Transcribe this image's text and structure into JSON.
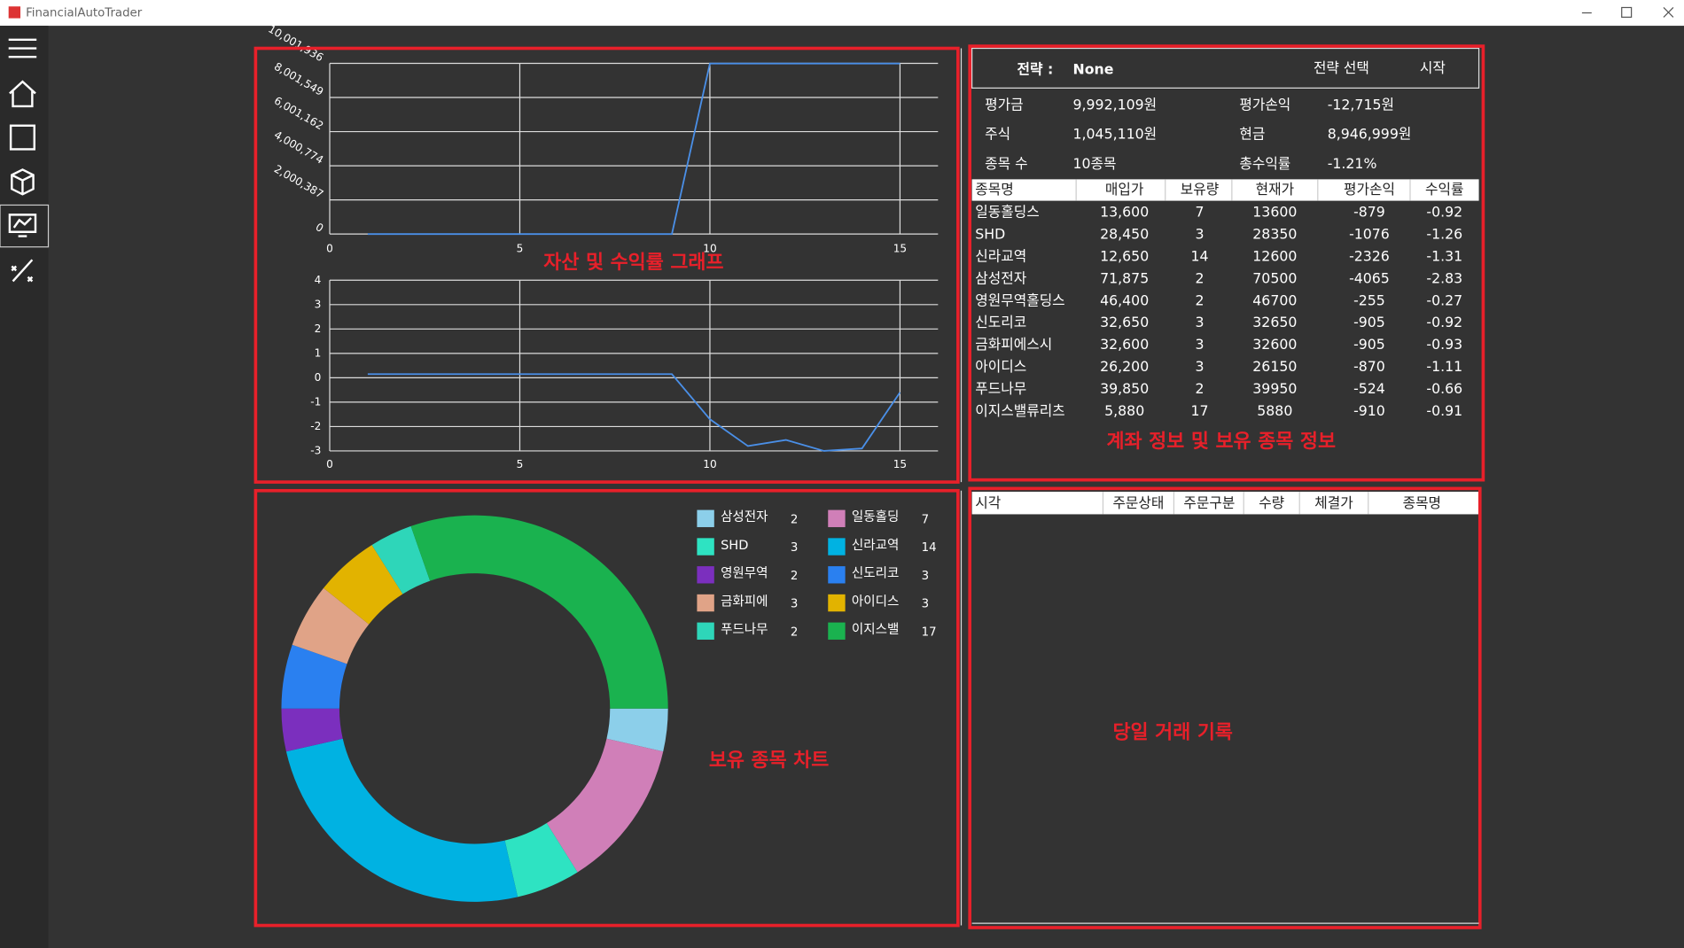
{
  "window": {
    "title": "FinancialAutoTrader"
  },
  "chart_data": [
    {
      "type": "line",
      "x": [
        1,
        2,
        3,
        4,
        5,
        6,
        7,
        8,
        9,
        10,
        11,
        12,
        13,
        14,
        15
      ],
      "values": [
        0,
        0,
        0,
        0,
        0,
        0,
        0,
        0,
        0,
        9992109,
        9992109,
        9992109,
        9992109,
        9992109,
        9992109
      ],
      "color": "#4a8fe7",
      "xlim": [
        0,
        16
      ],
      "ylim": [
        0,
        10001936
      ],
      "xticks": [
        0,
        5,
        10,
        15
      ],
      "yticks": [
        0,
        {
          "value": 2000387,
          "label": "2,000,387"
        },
        {
          "value": 4000774,
          "label": "4,000,774"
        },
        {
          "value": 6001162,
          "label": "6,001,162"
        },
        {
          "value": 8001549,
          "label": "8,001,549"
        },
        {
          "value": 10001936,
          "label": "10,001,936"
        }
      ],
      "grid": true
    },
    {
      "type": "line",
      "x": [
        1,
        2,
        3,
        4,
        5,
        6,
        7,
        8,
        9,
        10,
        11,
        12,
        13,
        14,
        15
      ],
      "values": [
        0.15,
        0.15,
        0.15,
        0.15,
        0.15,
        0.15,
        0.15,
        0.15,
        0.15,
        -1.7,
        -2.8,
        -2.55,
        -3.0,
        -2.9,
        -0.6
      ],
      "color": "#4a8fe7",
      "xlim": [
        0,
        16
      ],
      "ylim": [
        -3,
        4
      ],
      "xticks": [
        0,
        5,
        10,
        15
      ],
      "yticks": [
        -3,
        -2,
        -1,
        0,
        1,
        2,
        3,
        4
      ],
      "grid": true
    },
    {
      "type": "donut",
      "categories": [
        "삼성전자",
        "일동홀딩",
        "SHD",
        "신라교역",
        "영원무역",
        "신도리코",
        "금화피에",
        "아이디스",
        "푸드나무",
        "이지스밸"
      ],
      "values": [
        2,
        7,
        3,
        14,
        2,
        3,
        3,
        3,
        2,
        17
      ],
      "colors": [
        "#8ccfea",
        "#d07fb8",
        "#2ee3c2",
        "#00b2e2",
        "#7b2fbe",
        "#2a80f0",
        "#e0a387",
        "#e2b300",
        "#2ed6b9",
        "#1ab24f"
      ]
    }
  ],
  "account": {
    "strategy_label": "전략 :",
    "strategy": "None",
    "buttons": [
      "전략 선택",
      "시작"
    ],
    "summary": [
      [
        "평가금",
        "9,992,109원",
        "평가손익",
        "-12,715원"
      ],
      [
        "주식",
        "1,045,110원",
        "현금",
        "8,946,999원"
      ],
      [
        "종목 수",
        "10종목",
        "총수익률",
        "-1.21%"
      ]
    ]
  },
  "holdings_table": {
    "columns": [
      "종목명",
      "매입가",
      "보유량",
      "현재가",
      "평가손익",
      "수익률"
    ],
    "rows": [
      [
        "일동홀딩스",
        "13,600",
        "7",
        "13600",
        "-879",
        "-0.92"
      ],
      [
        "SHD",
        "28,450",
        "3",
        "28350",
        "-1076",
        "-1.26"
      ],
      [
        "신라교역",
        "12,650",
        "14",
        "12600",
        "-2326",
        "-1.31"
      ],
      [
        "삼성전자",
        "71,875",
        "2",
        "70500",
        "-4065",
        "-2.83"
      ],
      [
        "영원무역홀딩스",
        "46,400",
        "2",
        "46700",
        "-255",
        "-0.27"
      ],
      [
        "신도리코",
        "32,650",
        "3",
        "32650",
        "-905",
        "-0.92"
      ],
      [
        "금화피에스시",
        "32,600",
        "3",
        "32600",
        "-905",
        "-0.93"
      ],
      [
        "아이디스",
        "26,200",
        "3",
        "26150",
        "-870",
        "-1.11"
      ],
      [
        "푸드나무",
        "39,850",
        "2",
        "39950",
        "-524",
        "-0.66"
      ],
      [
        "이지스밸류리츠",
        "5,880",
        "17",
        "5880",
        "-910",
        "-0.91"
      ]
    ]
  },
  "trade_table": {
    "columns": [
      "시각",
      "주문상태",
      "주문구분",
      "수량",
      "체결가",
      "종목명"
    ]
  },
  "annotations": [
    "자산 및 수익률 그래프",
    "계좌 정보 및 보유 종목 정보",
    "보유 종목 차트",
    "당일 거래 기록"
  ]
}
